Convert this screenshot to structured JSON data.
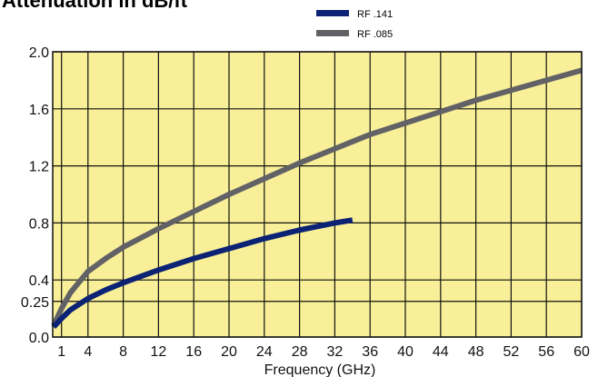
{
  "chart_data": {
    "type": "line",
    "title": "Attenuation in dB/ft",
    "xlabel": "Frequency (GHz)",
    "ylabel": "",
    "xlim": [
      0,
      60
    ],
    "ylim": [
      0,
      2.0
    ],
    "x_ticks": [
      1,
      4,
      8,
      12,
      16,
      20,
      24,
      28,
      32,
      36,
      40,
      44,
      48,
      52,
      56,
      60
    ],
    "y_ticks": [
      0.0,
      0.25,
      0.4,
      0.8,
      1.2,
      1.6,
      2.0
    ],
    "x_tick_labels": [
      "1",
      "4",
      "8",
      "12",
      "16",
      "20",
      "24",
      "28",
      "32",
      "36",
      "40",
      "44",
      "48",
      "52",
      "56",
      "60"
    ],
    "y_tick_labels": [
      "0.0",
      "0.25",
      "0.4",
      "0.8",
      "1.2",
      "1.6",
      "2.0"
    ],
    "grid": true,
    "legend_position": "top",
    "background_color": "#f8ef98",
    "grid_color": "#111111",
    "series": [
      {
        "name": "RF .141",
        "color": "#0b2275",
        "x": [
          0.1,
          1,
          2,
          4,
          6,
          8,
          12,
          16,
          20,
          24,
          28,
          32,
          34
        ],
        "y": [
          0.07,
          0.13,
          0.19,
          0.27,
          0.33,
          0.38,
          0.47,
          0.55,
          0.62,
          0.69,
          0.75,
          0.8,
          0.82
        ]
      },
      {
        "name": "RF .085",
        "color": "#616166",
        "x": [
          0.1,
          1,
          2,
          4,
          6,
          8,
          12,
          16,
          20,
          24,
          28,
          32,
          36,
          40,
          44,
          48,
          52,
          56,
          60
        ],
        "y": [
          0.08,
          0.2,
          0.31,
          0.46,
          0.55,
          0.63,
          0.76,
          0.88,
          1.0,
          1.11,
          1.22,
          1.32,
          1.42,
          1.5,
          1.58,
          1.66,
          1.73,
          1.8,
          1.87
        ]
      }
    ]
  }
}
